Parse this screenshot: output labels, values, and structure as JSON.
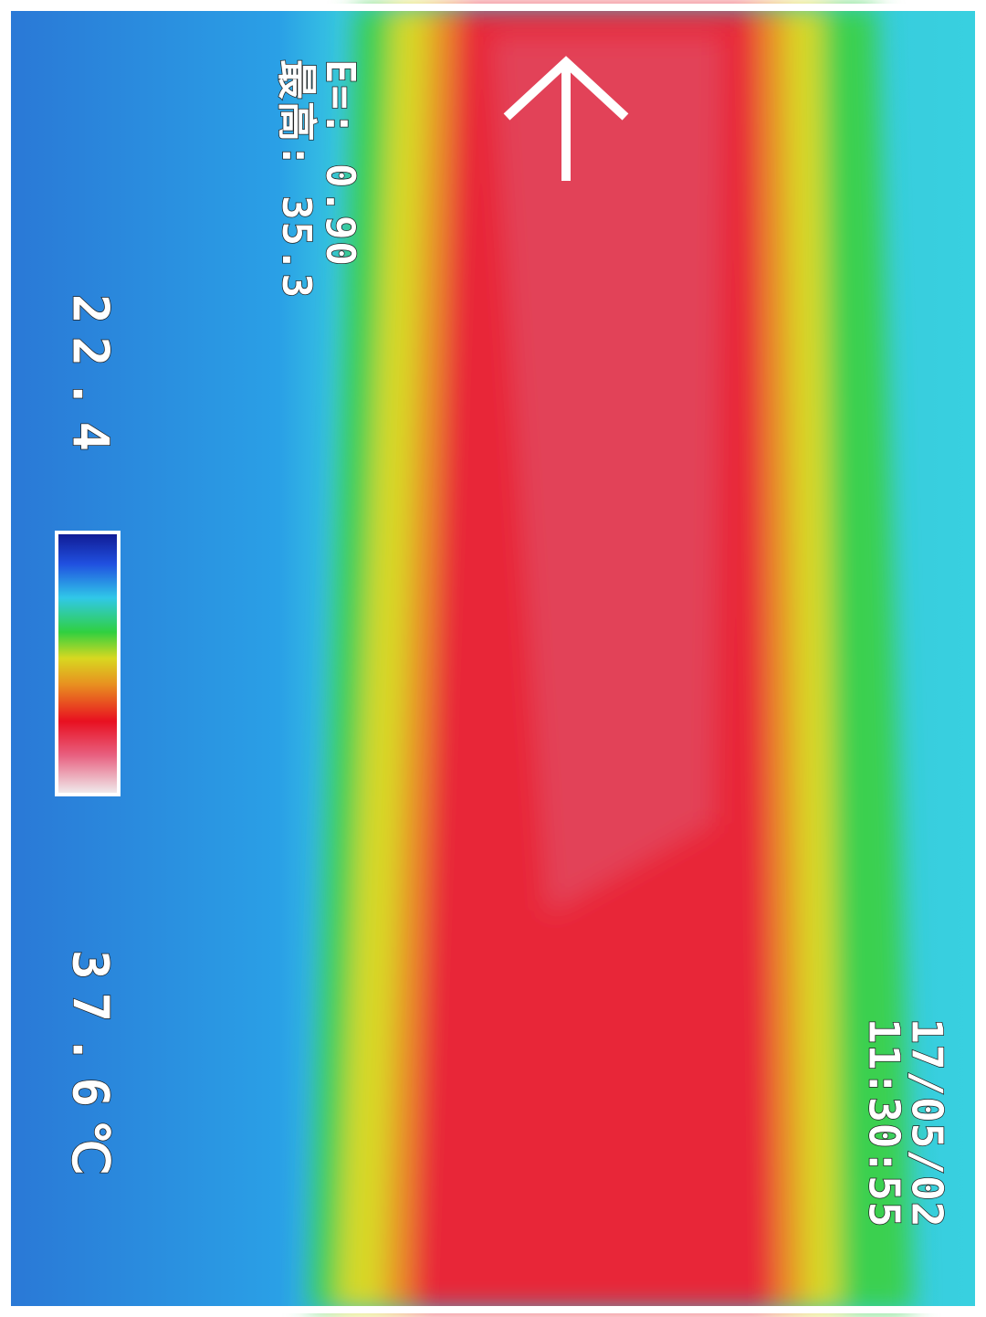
{
  "scale": {
    "min": "22.4",
    "max": "37.6℃"
  },
  "emissivity": "E=: 0.90",
  "max_temp": "最高: 35.3",
  "date": "17/05/02",
  "time": "11:30:55"
}
